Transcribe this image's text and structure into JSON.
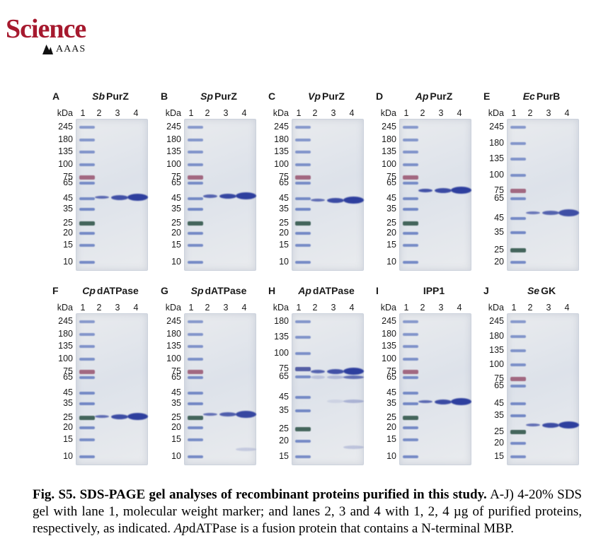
{
  "logo": {
    "title": "Science",
    "subtitle": "AAAS"
  },
  "colors": {
    "science_red": "#a6192e",
    "gel_bg_light": "#e9ebee",
    "gel_bg": "#dde2ea",
    "band_blue": "#2e3f9e",
    "ladder_blue": "#5b74bd",
    "marker_75_red": "#9c5b76",
    "marker_25_green": "#3c5f55"
  },
  "figure": {
    "lane_header": "kDa",
    "panels": [
      {
        "letter": "A",
        "title_prefix": "Sb",
        "title_name": "PurZ",
        "lane_labels": [
          "1",
          "2",
          "3",
          "4"
        ],
        "ladder": [
          245,
          180,
          135,
          100,
          75,
          65,
          45,
          35,
          25,
          20,
          15,
          10
        ],
        "band_kda": 47,
        "band_opacities": [
          0.55,
          0.8,
          1
        ],
        "extra_bands": []
      },
      {
        "letter": "B",
        "title_prefix": "Sp",
        "title_name": "PurZ",
        "lane_labels": [
          "1",
          "2",
          "3",
          "4"
        ],
        "ladder": [
          245,
          180,
          135,
          100,
          75,
          65,
          45,
          35,
          25,
          20,
          15,
          10
        ],
        "band_kda": 48,
        "band_opacities": [
          0.6,
          0.9,
          1
        ],
        "extra_bands": []
      },
      {
        "letter": "C",
        "title_prefix": "Vp",
        "title_name": "PurZ",
        "lane_labels": [
          "1",
          "2",
          "3",
          "4"
        ],
        "ladder": [
          245,
          180,
          135,
          100,
          75,
          65,
          45,
          35,
          25,
          20,
          15,
          10
        ],
        "band_kda": 44,
        "band_opacities": [
          0.5,
          0.85,
          1
        ],
        "extra_bands": []
      },
      {
        "letter": "D",
        "title_prefix": "Ap",
        "title_name": "PurZ",
        "lane_labels": [
          "1",
          "2",
          "3",
          "4"
        ],
        "ladder": [
          245,
          180,
          135,
          100,
          75,
          65,
          45,
          35,
          25,
          20,
          15,
          10
        ],
        "band_kda": 55,
        "band_opacities": [
          0.8,
          0.85,
          1
        ],
        "extra_bands": []
      },
      {
        "letter": "E",
        "title_prefix": "Ec",
        "title_name": "PurB",
        "lane_labels": [
          "1",
          "2",
          "3",
          "4"
        ],
        "ladder": [
          245,
          180,
          135,
          100,
          75,
          65,
          45,
          35,
          25,
          20
        ],
        "band_kda": 50,
        "band_opacities": [
          0.4,
          0.62,
          0.82
        ],
        "extra_bands": []
      },
      {
        "letter": "F",
        "title_prefix": "Cp",
        "title_name": "dATPase",
        "lane_labels": [
          "1",
          "2",
          "3",
          "4"
        ],
        "ladder": [
          245,
          180,
          135,
          100,
          75,
          65,
          45,
          35,
          25,
          20,
          15,
          10
        ],
        "band_kda": 26,
        "band_opacities": [
          0.5,
          0.85,
          1
        ],
        "extra_bands": []
      },
      {
        "letter": "G",
        "title_prefix": "Sp",
        "title_name": "dATPase",
        "lane_labels": [
          "1",
          "2",
          "3",
          "4"
        ],
        "ladder": [
          245,
          180,
          135,
          100,
          75,
          65,
          45,
          35,
          25,
          20,
          15,
          10
        ],
        "band_kda": 27.5,
        "band_opacities": [
          0.45,
          0.65,
          0.9
        ],
        "extra_bands": [
          {
            "kda": 12,
            "opacities": [
              0,
              0,
              0.18
            ]
          }
        ]
      },
      {
        "letter": "H",
        "title_prefix": "Ap",
        "title_name": "dATPase",
        "lane_labels": [
          "1",
          "2",
          "3",
          "4"
        ],
        "ladder": [
          180,
          135,
          100,
          75,
          65,
          45,
          35,
          25,
          20,
          15
        ],
        "band_kda": 72,
        "band_opacities": [
          0.6,
          0.8,
          1
        ],
        "ladder_overrides": {
          "75": "#46519e"
        },
        "extra_bands": [
          {
            "kda": 65,
            "opacities": [
              0.2,
              0.25,
              0.7
            ]
          },
          {
            "kda": 42,
            "opacities": [
              0,
              0.1,
              0.3
            ]
          },
          {
            "kda": 18,
            "opacities": [
              0,
              0,
              0.22
            ]
          }
        ]
      },
      {
        "letter": "I",
        "title_prefix": "",
        "title_name": "IPP1",
        "lane_labels": [
          "1",
          "2",
          "3",
          "4"
        ],
        "ladder": [
          245,
          180,
          135,
          100,
          75,
          65,
          45,
          35,
          25,
          20,
          15,
          10
        ],
        "band_kda": 37,
        "band_opacities": [
          0.55,
          0.85,
          1
        ],
        "extra_bands": []
      },
      {
        "letter": "J",
        "title_prefix": "Se",
        "title_name": "GK",
        "lane_labels": [
          "1",
          "2",
          "3",
          "4"
        ],
        "ladder": [
          245,
          180,
          135,
          100,
          75,
          65,
          45,
          35,
          25,
          20,
          15
        ],
        "band_kda": 29,
        "band_opacities": [
          0.5,
          0.85,
          1
        ],
        "extra_bands": []
      }
    ]
  },
  "caption": {
    "bold": "Fig. S5. SDS-PAGE gel analyses of recombinant proteins purified in this study.",
    "regular1": " A-J) 4-20% SDS gel with lane 1, molecular weight marker; and lanes 2, 3 and 4 with 1, 2, 4 µg of purified proteins, respectively, as indicated. ",
    "italic": "Ap",
    "regular2": "dATPase is a fusion protein that contains a N-terminal MBP."
  }
}
